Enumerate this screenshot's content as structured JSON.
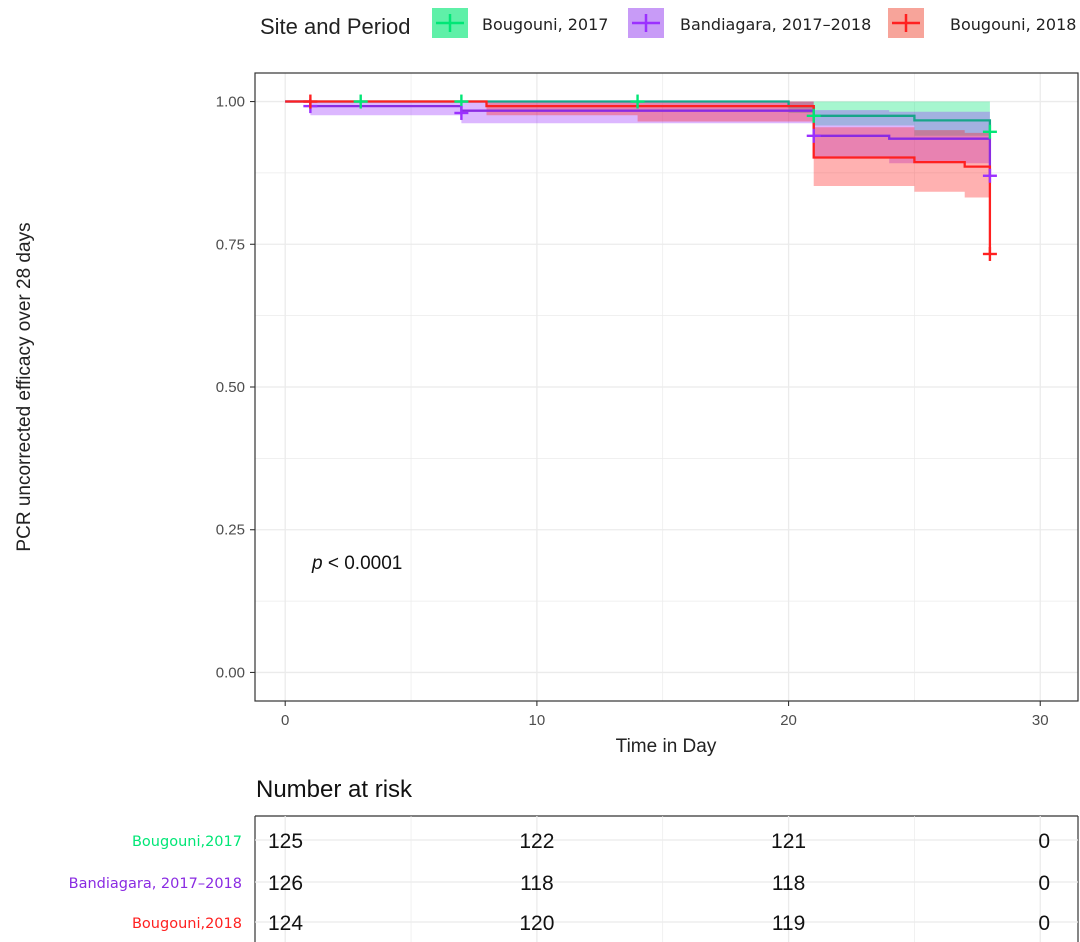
{
  "legend": {
    "title": "Site and Period",
    "items": [
      {
        "label": "Bougouni, 2017",
        "color": "#00e676",
        "fill": "#5ff0a8"
      },
      {
        "label": "Bandiagara, 2017–2018",
        "color": "#9b30ff",
        "fill": "#c89bf7"
      },
      {
        "label": "Bougouni, 2018",
        "color": "#ff2020",
        "fill": "#f7a49a"
      }
    ]
  },
  "annotation": {
    "p_italic": "p",
    "p_rest": " < 0.0001"
  },
  "risk_table": {
    "title": "Number at risk",
    "times": [
      0,
      10,
      20,
      30
    ],
    "rows": [
      {
        "label": "Bougouni,2017",
        "color": "#00e676",
        "counts": [
          "125",
          "122",
          "121",
          "0"
        ]
      },
      {
        "label": "Bandiagara, 2017–2018",
        "color": "#8a2be2",
        "counts": [
          "126",
          "118",
          "118",
          "0"
        ]
      },
      {
        "label": "Bougouni,2018",
        "color": "#ff2020",
        "counts": [
          "124",
          "120",
          "119",
          "0"
        ]
      }
    ]
  },
  "chart_data": {
    "type": "line",
    "subtype": "kaplan-meier step",
    "xlabel": "Time in Day",
    "ylabel": "PCR uncorrected efficacy over 28 days",
    "xlim": [
      -1.2,
      31.5
    ],
    "ylim": [
      -0.05,
      1.05
    ],
    "x_ticks": [
      0,
      10,
      20,
      30
    ],
    "y_ticks": [
      0.0,
      0.25,
      0.5,
      0.75,
      1.0
    ],
    "y_tick_labels": [
      "0.00",
      "0.25",
      "0.50",
      "0.75",
      "1.00"
    ],
    "grid": true,
    "legend_position": "top",
    "series": [
      {
        "name": "Bougouni, 2017",
        "color": "#17a589",
        "band_color": "#00e676",
        "steps": [
          [
            0,
            1.0
          ],
          [
            20,
            0.992
          ],
          [
            21,
            0.975
          ],
          [
            25,
            0.967
          ],
          [
            28,
            0.95
          ]
        ],
        "upper": [
          [
            0,
            1.0
          ],
          [
            20,
            1.0
          ],
          [
            28,
            1.0
          ]
        ],
        "lower": [
          [
            0,
            1.0
          ],
          [
            20,
            0.98
          ],
          [
            21,
            0.958
          ],
          [
            25,
            0.94
          ],
          [
            28,
            0.915
          ]
        ],
        "censor": [
          [
            3,
            1.0
          ],
          [
            7,
            1.0
          ],
          [
            14,
            1.0
          ],
          [
            21,
            0.975
          ],
          [
            28,
            0.947
          ]
        ]
      },
      {
        "name": "Bandiagara, 2017–2018",
        "color": "#8a2be2",
        "band_color": "#9b30ff",
        "steps": [
          [
            0,
            1.0
          ],
          [
            1,
            0.992
          ],
          [
            7,
            0.984
          ],
          [
            21,
            0.94
          ],
          [
            24,
            0.935
          ],
          [
            28,
            0.87
          ]
        ],
        "upper": [
          [
            0,
            1.0
          ],
          [
            1,
            1.0
          ],
          [
            7,
            1.0
          ],
          [
            21,
            0.985
          ],
          [
            24,
            0.982
          ],
          [
            28,
            0.975
          ]
        ],
        "lower": [
          [
            0,
            1.0
          ],
          [
            1,
            0.976
          ],
          [
            7,
            0.962
          ],
          [
            21,
            0.9
          ],
          [
            24,
            0.892
          ],
          [
            28,
            0.88
          ]
        ],
        "censor": [
          [
            1,
            0.992
          ],
          [
            7,
            0.98
          ],
          [
            21,
            0.94
          ],
          [
            28,
            0.87
          ]
        ]
      },
      {
        "name": "Bougouni, 2018",
        "color": "#ff2020",
        "band_color": "#ff2020",
        "steps": [
          [
            0,
            1.0
          ],
          [
            8,
            0.992
          ],
          [
            21,
            0.902
          ],
          [
            25,
            0.894
          ],
          [
            27,
            0.886
          ],
          [
            28,
            0.733
          ]
        ],
        "upper": [
          [
            0,
            1.0
          ],
          [
            8,
            1.0
          ],
          [
            14,
            1.0
          ],
          [
            21,
            0.955
          ],
          [
            25,
            0.95
          ],
          [
            27,
            0.945
          ],
          [
            28,
            0.945
          ]
        ],
        "lower": [
          [
            0,
            1.0
          ],
          [
            8,
            0.976
          ],
          [
            14,
            0.965
          ],
          [
            21,
            0.852
          ],
          [
            25,
            0.842
          ],
          [
            27,
            0.832
          ],
          [
            28,
            0.832
          ]
        ],
        "censor": [
          [
            1,
            1.0
          ],
          [
            28,
            0.733
          ]
        ]
      }
    ]
  }
}
